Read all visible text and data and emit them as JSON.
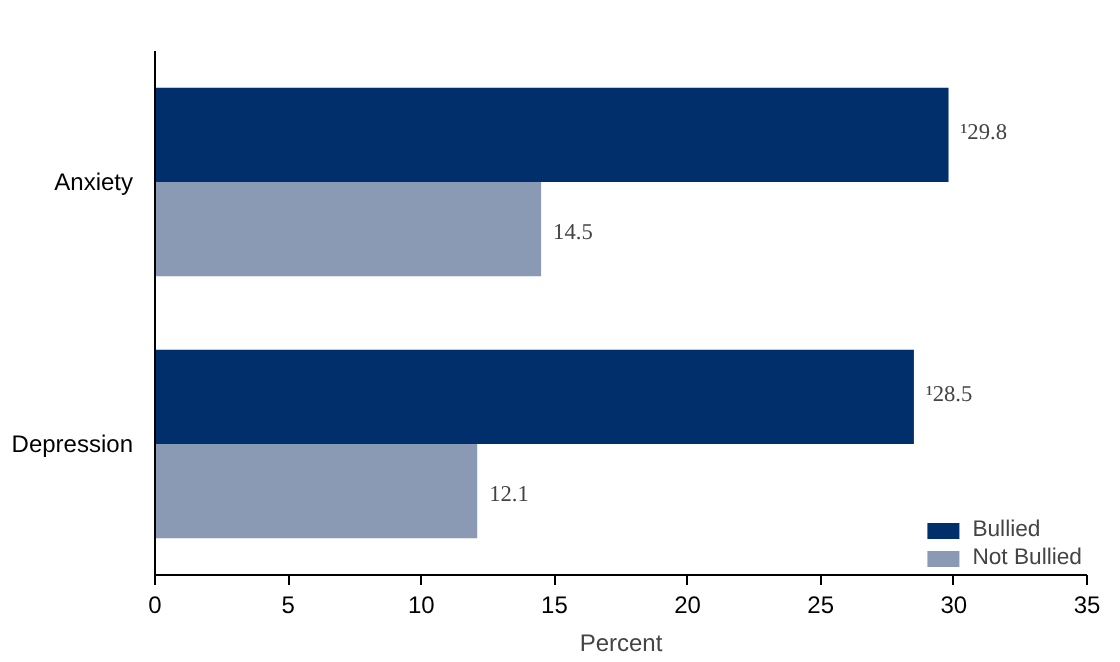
{
  "chart_data": {
    "type": "bar",
    "orientation": "horizontal",
    "xlabel": "Percent",
    "categories": [
      "Anxiety",
      "Depression"
    ],
    "series": [
      {
        "name": "Bullied",
        "color": "#002f6c",
        "values": [
          29.8,
          28.5
        ],
        "value_labels": [
          "¹29.8",
          "¹28.5"
        ]
      },
      {
        "name": "Not Bullied",
        "color": "#8a9ab5",
        "values": [
          14.5,
          12.1
        ],
        "value_labels": [
          "14.5",
          "12.1"
        ]
      }
    ],
    "xlim": [
      0,
      35
    ],
    "xticks": [
      0,
      5,
      10,
      15,
      20,
      25,
      30,
      35
    ],
    "grid": false,
    "legend": "bottom right"
  }
}
